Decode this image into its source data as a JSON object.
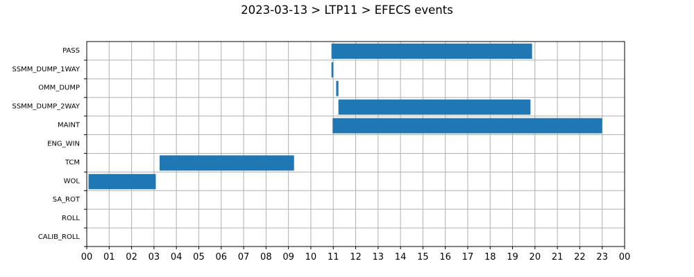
{
  "chart_data": {
    "type": "bar",
    "orientation": "horizontal-timeline",
    "title": "2023-03-13 > LTP11 > EFECS events",
    "xlabel": "",
    "ylabel": "",
    "x_unit": "hour",
    "xlim": [
      0,
      24
    ],
    "x_ticks": [
      "00",
      "01",
      "02",
      "03",
      "04",
      "05",
      "06",
      "07",
      "08",
      "09",
      "10",
      "11",
      "12",
      "13",
      "14",
      "15",
      "16",
      "17",
      "18",
      "19",
      "20",
      "21",
      "22",
      "23",
      "00"
    ],
    "categories": [
      "PASS",
      "SSMM_DUMP_1WAY",
      "OMM_DUMP",
      "SSMM_DUMP_2WAY",
      "MAINT",
      "ENG_WIN",
      "TCM",
      "WOL",
      "SA_ROT",
      "ROLL",
      "CALIB_ROLL"
    ],
    "intervals": [
      {
        "category": "PASS",
        "start": 10.92,
        "end": 19.87
      },
      {
        "category": "SSMM_DUMP_1WAY",
        "start": 10.92,
        "end": 11.0
      },
      {
        "category": "OMM_DUMP",
        "start": 11.13,
        "end": 11.23
      },
      {
        "category": "SSMM_DUMP_2WAY",
        "start": 11.23,
        "end": 19.8
      },
      {
        "category": "MAINT",
        "start": 10.97,
        "end": 23.0
      },
      {
        "category": "TCM",
        "start": 3.25,
        "end": 9.25
      },
      {
        "category": "WOL",
        "start": 0.08,
        "end": 3.08
      }
    ],
    "bar_color": "#1f77b4",
    "grid": true,
    "legend": "none"
  }
}
